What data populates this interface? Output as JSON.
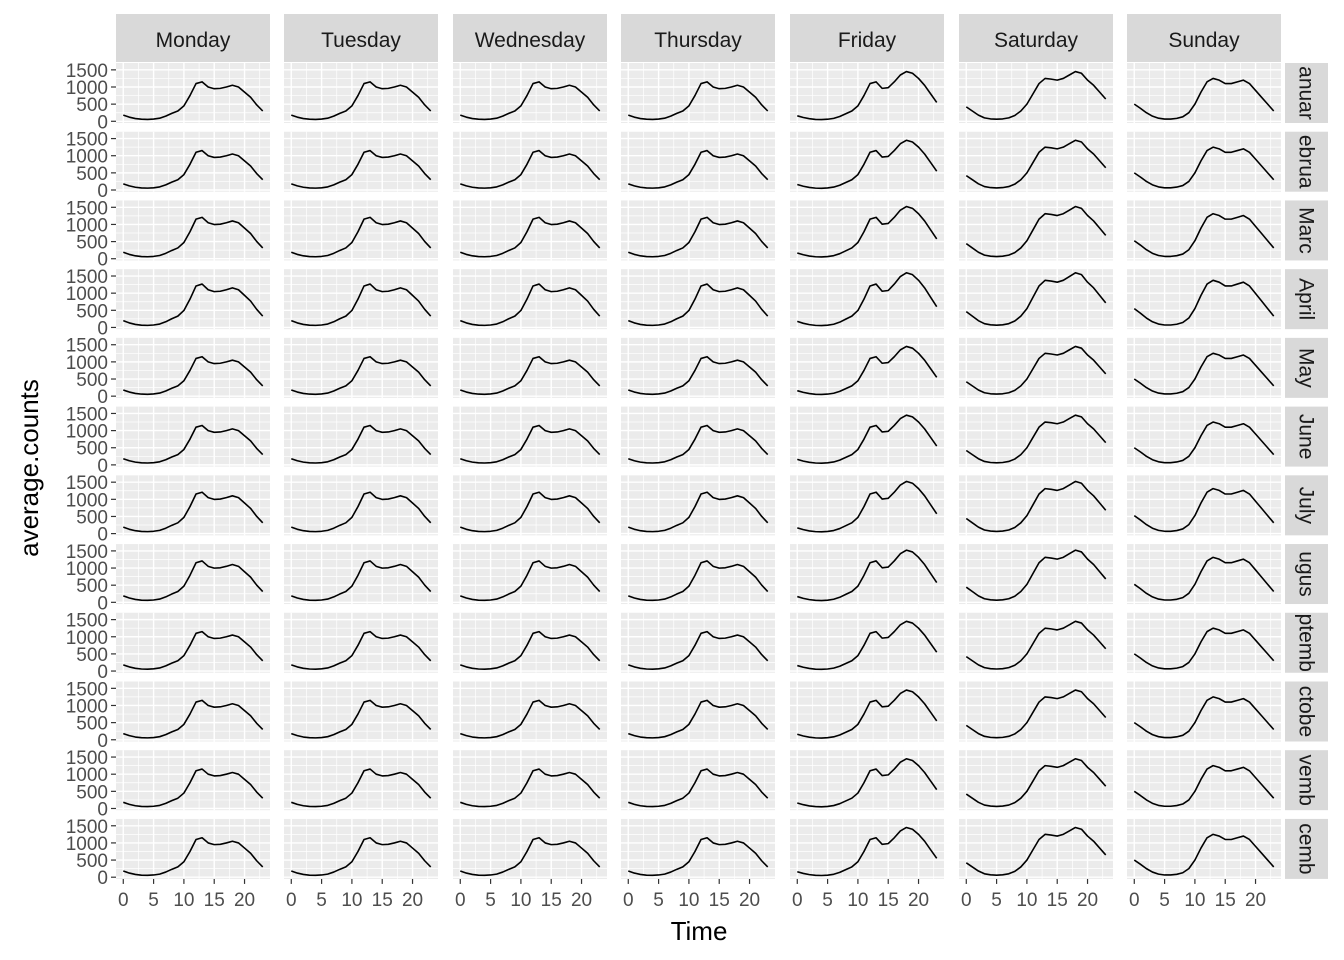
{
  "chart_data": {
    "type": "line",
    "layout": "facet_grid",
    "title": "",
    "xlabel": "Time",
    "ylabel": "average.counts",
    "xlim": [
      -1.2,
      24.2
    ],
    "ylim": [
      -50,
      1700
    ],
    "x_ticks": [
      0,
      5,
      10,
      15,
      20
    ],
    "y_ticks": [
      0,
      500,
      1000,
      1500
    ],
    "x_tick_labels": [
      "0",
      "5",
      "10",
      "15",
      "20"
    ],
    "y_tick_labels": [
      "0",
      "500",
      "1000",
      "1500"
    ],
    "grid": true,
    "column_facets": [
      "Monday",
      "Tuesday",
      "Wednesday",
      "Thursday",
      "Friday",
      "Saturday",
      "Sunday"
    ],
    "row_facets": [
      "January",
      "February",
      "March",
      "April",
      "May",
      "June",
      "July",
      "August",
      "September",
      "October",
      "November",
      "December"
    ],
    "row_facet_visible": [
      "anuar",
      "ebrua",
      "Marc",
      "April",
      "May",
      "June",
      "July",
      "ugus",
      "ptemb",
      "ctobe",
      "vemb",
      "cemb"
    ],
    "x": [
      0,
      1,
      2,
      3,
      4,
      5,
      6,
      7,
      8,
      9,
      10,
      11,
      12,
      13,
      14,
      15,
      16,
      17,
      18,
      19,
      20,
      21,
      22,
      23
    ],
    "profiles": {
      "weekday": [
        180,
        120,
        80,
        60,
        55,
        65,
        90,
        150,
        230,
        300,
        450,
        750,
        1100,
        1150,
        1000,
        950,
        960,
        1000,
        1050,
        1000,
        850,
        700,
        480,
        300
      ],
      "friday": [
        160,
        110,
        75,
        55,
        50,
        60,
        85,
        140,
        220,
        300,
        450,
        750,
        1100,
        1150,
        960,
        980,
        1150,
        1350,
        1450,
        1400,
        1250,
        1050,
        800,
        550
      ],
      "saturday": [
        420,
        300,
        180,
        100,
        70,
        60,
        70,
        100,
        170,
        300,
        500,
        800,
        1100,
        1250,
        1230,
        1200,
        1250,
        1350,
        1450,
        1400,
        1200,
        1050,
        850,
        650
      ],
      "sunday": [
        500,
        380,
        250,
        150,
        90,
        65,
        65,
        85,
        130,
        250,
        500,
        850,
        1150,
        1250,
        1200,
        1100,
        1100,
        1150,
        1200,
        1100,
        900,
        700,
        500,
        300
      ]
    },
    "row_scale": [
      1.0,
      1.0,
      1.05,
      1.1,
      1.0,
      1.0,
      1.05,
      1.05,
      1.0,
      1.0,
      1.0,
      1.0
    ]
  }
}
